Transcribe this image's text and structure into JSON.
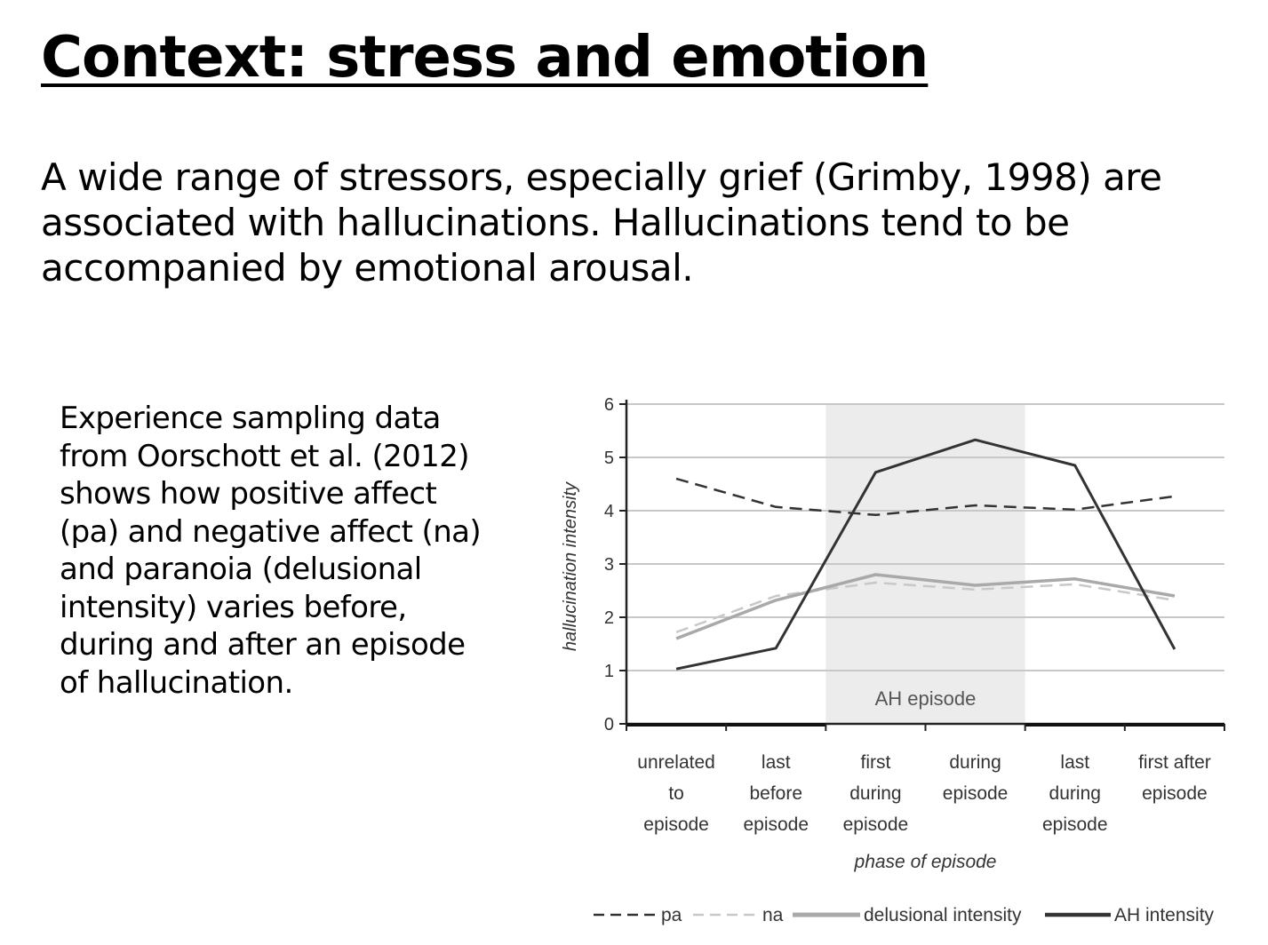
{
  "slide": {
    "title": "Context: stress and emotion",
    "intro_lines": [
      "A wide range of stressors, especially grief (Grimby, 1998) are",
      "associated with hallucinations. Hallucinations tend to be",
      "accompanied by emotional arousal."
    ],
    "caption_lines": [
      "Experience sampling data",
      "from Oorschott  et al. (2012)",
      "shows how positive affect",
      "(pa) and negative affect (na)",
      "and paranoia (delusional",
      "intensity) varies before,",
      "during and after an episode",
      "of hallucination."
    ]
  },
  "chart_data": {
    "type": "line",
    "ylabel": "hallucination intensity",
    "xlabel": "phase of episode",
    "ylim": [
      0,
      6
    ],
    "yticks": [
      0,
      1,
      2,
      3,
      4,
      5,
      6
    ],
    "grid": "horizontal",
    "legend_position": "bottom",
    "categories": [
      [
        "unrelated",
        "to",
        "episode"
      ],
      [
        "last",
        "before",
        "episode"
      ],
      [
        "first",
        "during",
        "episode"
      ],
      [
        "during",
        "episode"
      ],
      [
        "last",
        "during",
        "episode"
      ],
      [
        "first after",
        "episode"
      ]
    ],
    "shaded_region": {
      "label": "AH episode",
      "from_category": 2,
      "to_category": 4,
      "color": "#ececec"
    },
    "series": [
      {
        "name": "pa",
        "style": "dashed",
        "color": "#333333",
        "values": [
          4.6,
          4.07,
          3.92,
          4.1,
          4.02,
          4.27
        ]
      },
      {
        "name": "na",
        "style": "dashed",
        "color": "#c8c8c8",
        "values": [
          1.72,
          2.4,
          2.65,
          2.52,
          2.62,
          2.32
        ]
      },
      {
        "name": "delusional intensity",
        "style": "solid",
        "color": "#a9a9a9",
        "values": [
          1.6,
          2.32,
          2.8,
          2.6,
          2.72,
          2.4
        ]
      },
      {
        "name": "AH intensity",
        "style": "solid",
        "color": "#333333",
        "values": [
          1.03,
          1.42,
          4.72,
          5.33,
          4.85,
          1.4
        ]
      }
    ]
  }
}
